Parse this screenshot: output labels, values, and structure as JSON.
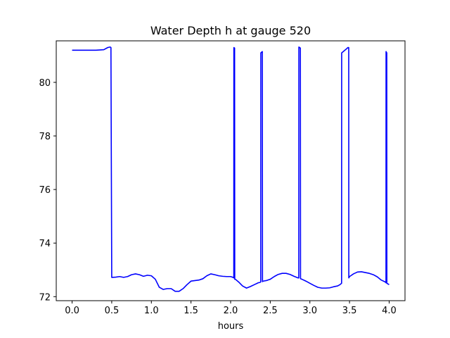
{
  "chart_data": {
    "type": "line",
    "title": "Water Depth h at gauge 520",
    "xlabel": "hours",
    "ylabel": "",
    "xlim": [
      -0.2,
      4.2
    ],
    "ylim": [
      71.85,
      81.55
    ],
    "x_ticks": [
      0.0,
      0.5,
      1.0,
      1.5,
      2.0,
      2.5,
      3.0,
      3.5,
      4.0
    ],
    "x_tick_labels": [
      "0.0",
      "0.5",
      "1.0",
      "1.5",
      "2.0",
      "2.5",
      "3.0",
      "3.5",
      "4.0"
    ],
    "y_ticks": [
      72,
      74,
      76,
      78,
      80
    ],
    "y_tick_labels": [
      "72",
      "74",
      "76",
      "78",
      "80"
    ],
    "grid": false,
    "legend": "none",
    "series": [
      {
        "color": "#0000ff",
        "x": [
          0.0,
          0.1,
          0.2,
          0.3,
          0.4,
          0.45,
          0.48,
          0.49,
          0.5,
          0.55,
          0.6,
          0.65,
          0.7,
          0.75,
          0.8,
          0.85,
          0.9,
          0.95,
          1.0,
          1.05,
          1.1,
          1.15,
          1.2,
          1.25,
          1.3,
          1.35,
          1.4,
          1.45,
          1.5,
          1.55,
          1.6,
          1.65,
          1.7,
          1.75,
          1.8,
          1.85,
          1.9,
          1.95,
          2.0,
          2.03,
          2.04,
          2.041,
          2.05,
          2.052,
          2.06,
          2.1,
          2.15,
          2.2,
          2.25,
          2.3,
          2.35,
          2.37,
          2.38,
          2.381,
          2.4,
          2.402,
          2.41,
          2.45,
          2.5,
          2.55,
          2.6,
          2.65,
          2.7,
          2.75,
          2.8,
          2.85,
          2.86,
          2.861,
          2.88,
          2.882,
          2.9,
          2.95,
          3.0,
          3.05,
          3.1,
          3.15,
          3.2,
          3.25,
          3.3,
          3.35,
          3.38,
          3.4,
          3.401,
          3.45,
          3.48,
          3.49,
          3.491,
          3.5,
          3.55,
          3.6,
          3.65,
          3.7,
          3.75,
          3.8,
          3.85,
          3.9,
          3.95,
          3.96,
          3.961,
          3.97,
          3.971,
          4.0
        ],
        "values": [
          81.2,
          81.2,
          81.2,
          81.2,
          81.22,
          81.3,
          81.32,
          81.3,
          72.72,
          72.73,
          72.75,
          72.72,
          72.75,
          72.82,
          72.85,
          72.82,
          72.76,
          72.8,
          72.78,
          72.65,
          72.35,
          72.27,
          72.3,
          72.3,
          72.2,
          72.2,
          72.3,
          72.45,
          72.58,
          72.6,
          72.62,
          72.67,
          72.78,
          72.85,
          72.82,
          72.78,
          72.76,
          72.75,
          72.75,
          72.72,
          72.7,
          81.3,
          81.28,
          72.65,
          72.65,
          72.55,
          72.4,
          72.32,
          72.38,
          72.45,
          72.52,
          72.53,
          72.55,
          81.1,
          81.15,
          72.56,
          72.58,
          72.6,
          72.65,
          72.75,
          72.83,
          72.87,
          72.87,
          72.83,
          72.76,
          72.7,
          72.7,
          81.32,
          81.28,
          72.67,
          72.65,
          72.58,
          72.5,
          72.42,
          72.35,
          72.32,
          72.32,
          72.33,
          72.37,
          72.4,
          72.45,
          72.5,
          81.1,
          81.22,
          81.3,
          81.3,
          72.7,
          72.75,
          72.85,
          72.92,
          72.93,
          72.9,
          72.87,
          72.82,
          72.74,
          72.62,
          72.55,
          72.52,
          81.15,
          81.1,
          72.5,
          72.45
        ]
      }
    ]
  }
}
